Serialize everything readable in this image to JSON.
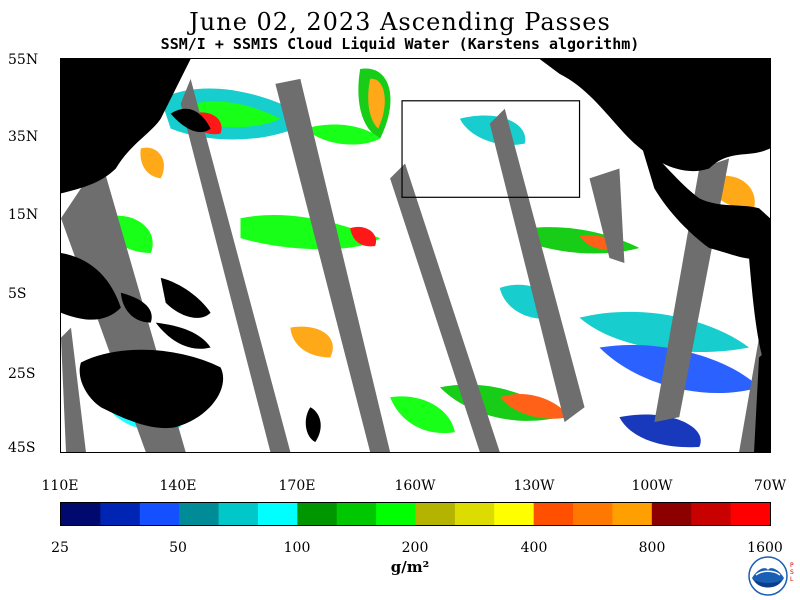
{
  "header": {
    "title": "June 02, 2023  Ascending Passes",
    "subtitle": "SSM/I + SSMIS Cloud Liquid Water (Karstens algorithm)"
  },
  "map": {
    "lat_labels": [
      "55N",
      "35N",
      "15N",
      "5S",
      "25S",
      "45S"
    ],
    "lon_labels": [
      "110E",
      "140E",
      "170E",
      "160W",
      "130W",
      "100W",
      "70W"
    ],
    "land_color": "#000000",
    "no_data_color": "#6e6e6e",
    "clear_color": "#ffffff",
    "highlight_box_color": "#000000"
  },
  "legend": {
    "colors": [
      "#000a6e",
      "#0024b4",
      "#1450ff",
      "#008c96",
      "#00c8c8",
      "#00ffff",
      "#009600",
      "#00c800",
      "#00ff00",
      "#b4b400",
      "#dcdc00",
      "#ffff00",
      "#ff5000",
      "#ff7800",
      "#ffa000",
      "#8c0000",
      "#c80000",
      "#ff0000"
    ],
    "tick_labels": [
      "25",
      "50",
      "100",
      "200",
      "400",
      "800",
      "1600"
    ],
    "unit": "g/m²"
  },
  "logo": {
    "name": "NOAA",
    "side_text": "P.S.L"
  }
}
